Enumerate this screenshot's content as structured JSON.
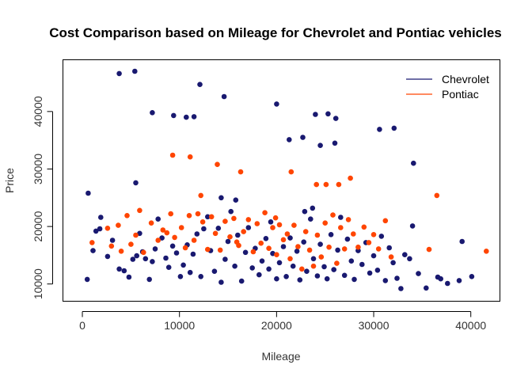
{
  "chart_data": {
    "type": "scatter",
    "title": "Cost Comparison based on Mileage for Chevrolet and Pontiac vehicles",
    "xlabel": "Mileage",
    "ylabel": "Price",
    "xlim": [
      -2000,
      43000
    ],
    "ylim": [
      7000,
      49000
    ],
    "xticks": [
      "0",
      "10000",
      "20000",
      "30000",
      "40000"
    ],
    "xtick_values": [
      0,
      10000,
      20000,
      30000,
      40000
    ],
    "yticks": [
      "10000",
      "20000",
      "30000",
      "40000"
    ],
    "ytick_values": [
      10000,
      20000,
      30000,
      40000
    ],
    "grid": false,
    "legend_position": "top-right",
    "series": [
      {
        "name": "Chevrolet",
        "color": "#191970",
        "points": [
          [
            600,
            25800
          ],
          [
            3800,
            46600
          ],
          [
            5400,
            47000
          ],
          [
            7200,
            39800
          ],
          [
            9400,
            39300
          ],
          [
            10700,
            39000
          ],
          [
            11500,
            39100
          ],
          [
            12100,
            44700
          ],
          [
            14600,
            42600
          ],
          [
            20000,
            41300
          ],
          [
            21300,
            35100
          ],
          [
            22700,
            35500
          ],
          [
            24000,
            39500
          ],
          [
            24500,
            34100
          ],
          [
            25300,
            39600
          ],
          [
            26000,
            34500
          ],
          [
            26100,
            38800
          ],
          [
            30600,
            36900
          ],
          [
            32100,
            37100
          ],
          [
            34100,
            31000
          ],
          [
            5500,
            27600
          ],
          [
            14300,
            25000
          ],
          [
            15800,
            24600
          ],
          [
            500,
            10800
          ],
          [
            1100,
            15800
          ],
          [
            1400,
            19200
          ],
          [
            1800,
            19600
          ],
          [
            1900,
            21600
          ],
          [
            2600,
            14800
          ],
          [
            3100,
            17600
          ],
          [
            3800,
            12600
          ],
          [
            4300,
            12300
          ],
          [
            4800,
            11200
          ],
          [
            5200,
            14300
          ],
          [
            5600,
            14900
          ],
          [
            5900,
            18800
          ],
          [
            6200,
            15600
          ],
          [
            6500,
            14400
          ],
          [
            6900,
            10800
          ],
          [
            7200,
            13900
          ],
          [
            7500,
            16100
          ],
          [
            7800,
            21300
          ],
          [
            8200,
            18000
          ],
          [
            8600,
            14500
          ],
          [
            8900,
            12900
          ],
          [
            9300,
            16600
          ],
          [
            9700,
            15400
          ],
          [
            10100,
            11300
          ],
          [
            10400,
            13300
          ],
          [
            10800,
            16800
          ],
          [
            11100,
            12000
          ],
          [
            11400,
            15200
          ],
          [
            11800,
            18700
          ],
          [
            12200,
            11300
          ],
          [
            12500,
            19600
          ],
          [
            12900,
            21700
          ],
          [
            13200,
            15800
          ],
          [
            13600,
            12200
          ],
          [
            14000,
            19700
          ],
          [
            14300,
            10300
          ],
          [
            14700,
            14300
          ],
          [
            15000,
            17400
          ],
          [
            15300,
            22600
          ],
          [
            15700,
            13100
          ],
          [
            16000,
            18500
          ],
          [
            16400,
            10500
          ],
          [
            16800,
            15500
          ],
          [
            17100,
            19800
          ],
          [
            17500,
            12800
          ],
          [
            17800,
            16200
          ],
          [
            18200,
            11600
          ],
          [
            18500,
            14000
          ],
          [
            18900,
            17900
          ],
          [
            19200,
            12600
          ],
          [
            19600,
            15300
          ],
          [
            20000,
            10900
          ],
          [
            20300,
            13700
          ],
          [
            20700,
            16500
          ],
          [
            21000,
            11300
          ],
          [
            21400,
            18000
          ],
          [
            21700,
            13100
          ],
          [
            22100,
            15700
          ],
          [
            22400,
            10700
          ],
          [
            22800,
            17300
          ],
          [
            23100,
            12200
          ],
          [
            23500,
            21300
          ],
          [
            23800,
            14400
          ],
          [
            24200,
            11400
          ],
          [
            24500,
            16900
          ],
          [
            24900,
            13000
          ],
          [
            25200,
            10900
          ],
          [
            25600,
            18600
          ],
          [
            25900,
            12500
          ],
          [
            26300,
            15900
          ],
          [
            26600,
            21600
          ],
          [
            27000,
            11500
          ],
          [
            27300,
            17800
          ],
          [
            27700,
            14000
          ],
          [
            28000,
            10800
          ],
          [
            28400,
            15800
          ],
          [
            28800,
            13400
          ],
          [
            29200,
            17200
          ],
          [
            29600,
            11900
          ],
          [
            30000,
            14900
          ],
          [
            30400,
            12400
          ],
          [
            30800,
            18300
          ],
          [
            31200,
            10600
          ],
          [
            31600,
            16300
          ],
          [
            32000,
            13700
          ],
          [
            32400,
            11000
          ],
          [
            32800,
            9200
          ],
          [
            33200,
            15100
          ],
          [
            33700,
            14400
          ],
          [
            34000,
            20100
          ],
          [
            34600,
            11800
          ],
          [
            35400,
            9300
          ],
          [
            36600,
            11200
          ],
          [
            36900,
            10900
          ],
          [
            37600,
            10100
          ],
          [
            38800,
            10600
          ],
          [
            39100,
            17400
          ],
          [
            40100,
            11300
          ],
          [
            23700,
            23200
          ],
          [
            22900,
            22600
          ],
          [
            19400,
            20800
          ]
        ]
      },
      {
        "name": "Pontiac",
        "color": "#FF4500",
        "points": [
          [
            9300,
            32400
          ],
          [
            11100,
            32100
          ],
          [
            13900,
            30800
          ],
          [
            16300,
            29500
          ],
          [
            21500,
            29500
          ],
          [
            24100,
            27300
          ],
          [
            25100,
            27300
          ],
          [
            26400,
            27300
          ],
          [
            27600,
            28400
          ],
          [
            36500,
            25400
          ],
          [
            12200,
            25400
          ],
          [
            1000,
            17200
          ],
          [
            2600,
            19700
          ],
          [
            3000,
            16600
          ],
          [
            4000,
            15700
          ],
          [
            4600,
            21900
          ],
          [
            5000,
            16900
          ],
          [
            5500,
            18500
          ],
          [
            5900,
            22800
          ],
          [
            6300,
            15500
          ],
          [
            7100,
            20600
          ],
          [
            7800,
            17600
          ],
          [
            8300,
            19400
          ],
          [
            9100,
            22200
          ],
          [
            9500,
            18100
          ],
          [
            10200,
            19800
          ],
          [
            10600,
            16300
          ],
          [
            11000,
            21900
          ],
          [
            11500,
            17600
          ],
          [
            11900,
            22200
          ],
          [
            12400,
            20800
          ],
          [
            12900,
            16000
          ],
          [
            13300,
            21700
          ],
          [
            13700,
            18800
          ],
          [
            14200,
            15900
          ],
          [
            14700,
            20900
          ],
          [
            15200,
            18200
          ],
          [
            15600,
            21400
          ],
          [
            16100,
            16700
          ],
          [
            16600,
            19100
          ],
          [
            17100,
            21200
          ],
          [
            17600,
            15600
          ],
          [
            18000,
            20500
          ],
          [
            18400,
            17100
          ],
          [
            18800,
            22400
          ],
          [
            19200,
            16200
          ],
          [
            19600,
            19800
          ],
          [
            20000,
            15100
          ],
          [
            20300,
            20300
          ],
          [
            20700,
            17700
          ],
          [
            21100,
            18700
          ],
          [
            21400,
            14400
          ],
          [
            21800,
            20200
          ],
          [
            22200,
            16500
          ],
          [
            22600,
            12600
          ],
          [
            23000,
            19100
          ],
          [
            23400,
            15900
          ],
          [
            23800,
            13100
          ],
          [
            24200,
            18500
          ],
          [
            24600,
            14700
          ],
          [
            25000,
            20600
          ],
          [
            25400,
            16400
          ],
          [
            25800,
            22000
          ],
          [
            26200,
            13600
          ],
          [
            26600,
            19800
          ],
          [
            27000,
            16100
          ],
          [
            27400,
            21200
          ],
          [
            27900,
            18700
          ],
          [
            28400,
            16400
          ],
          [
            29000,
            19900
          ],
          [
            29500,
            17200
          ],
          [
            30000,
            18600
          ],
          [
            30500,
            16100
          ],
          [
            31200,
            21000
          ],
          [
            31800,
            14700
          ],
          [
            35700,
            16000
          ],
          [
            41600,
            15700
          ],
          [
            3700,
            20200
          ],
          [
            8700,
            18900
          ],
          [
            15900,
            17300
          ],
          [
            19900,
            21500
          ]
        ]
      }
    ]
  }
}
